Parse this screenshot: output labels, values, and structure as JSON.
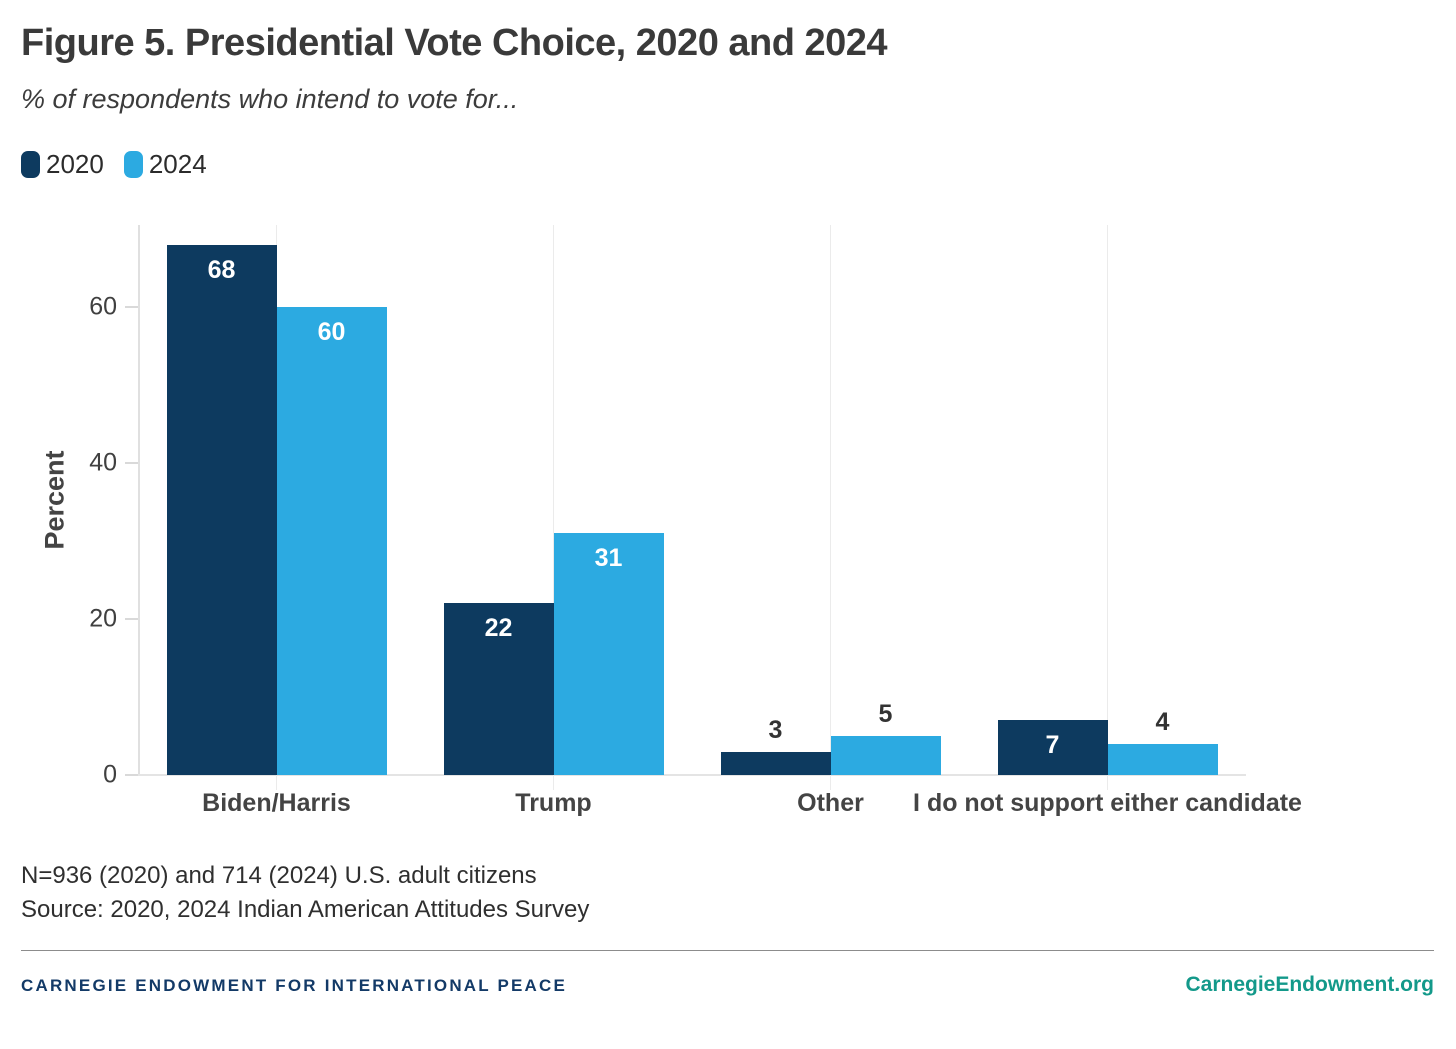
{
  "header": {
    "title": "Figure 5. Presidential Vote Choice, 2020 and 2024",
    "subtitle": "% of respondents who intend to vote for..."
  },
  "chart_data": {
    "type": "bar",
    "title": "Figure 5. Presidential Vote Choice, 2020 and 2024",
    "subtitle": "% of respondents who intend to vote for...",
    "categories": [
      "Biden/Harris",
      "Trump",
      "Other",
      "I do not support either candidate"
    ],
    "series": [
      {
        "name": "2020",
        "color": "#0d3a5f",
        "values": [
          68,
          22,
          3,
          7
        ]
      },
      {
        "name": "2024",
        "color": "#2caae1",
        "values": [
          60,
          31,
          5,
          4
        ]
      }
    ],
    "xlabel": "",
    "ylabel": "Percent",
    "yticks": [
      0,
      20,
      40,
      60
    ],
    "ylim": [
      0,
      70.5
    ],
    "grid": "vertical gridlines at category centers, no horizontal gridlines",
    "legend_position": "top-left",
    "bar_value_labels": "white inside tall bars, dark gray above short bars"
  },
  "notes": {
    "sample": "N=936 (2020) and 714 (2024) U.S. adult citizens",
    "source": "Source: 2020, 2024 Indian American Attitudes Survey"
  },
  "footer": {
    "org": "CARNEGIE ENDOWMENT FOR INTERNATIONAL PEACE",
    "site": "CarnegieEndowment.org",
    "org_color": "#133a67",
    "site_color": "#13998a"
  },
  "colors": {
    "title_text": "#3a3a3a",
    "axis_text": "#404040",
    "gridline": "#ebebeb",
    "axis_line": "#e0e0e0"
  }
}
